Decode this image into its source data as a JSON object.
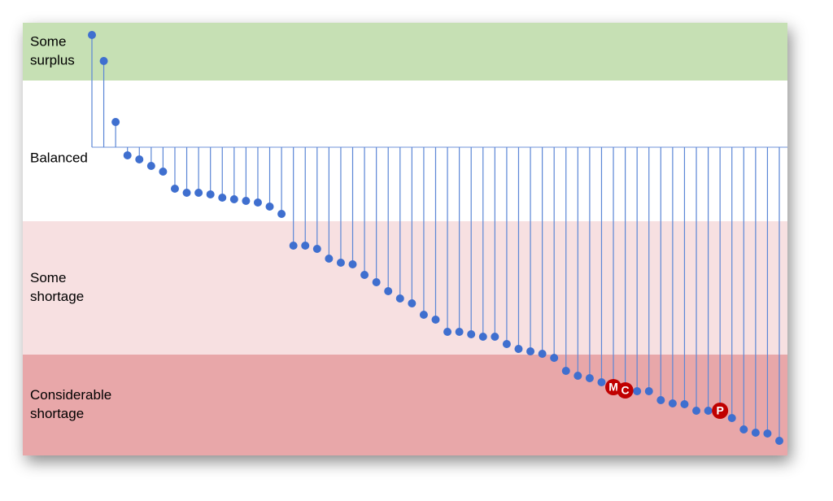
{
  "chart_data": {
    "type": "lollipop",
    "bands": [
      {
        "lines": [
          "Some",
          "surplus"
        ],
        "from": 82,
        "to": 153,
        "color": "#c6e0b4"
      },
      {
        "lines": [
          "Balanced"
        ],
        "from": -91,
        "to": 82,
        "color": "#ffffff"
      },
      {
        "lines": [
          "Some",
          "shortage"
        ],
        "from": -255,
        "to": -91,
        "color": "#f7e0e1"
      },
      {
        "lines": [
          "Considerable",
          "shortage"
        ],
        "from": -379,
        "to": -255,
        "color": "#e8a7a9"
      }
    ],
    "values": [
      138,
      106,
      31,
      -10,
      -15,
      -23,
      -30,
      -51,
      -56,
      -56,
      -58,
      -62,
      -64,
      -66,
      -68,
      -73,
      -82,
      -121,
      -121,
      -125,
      -137,
      -142,
      -144,
      -157,
      -166,
      -177,
      -186,
      -192,
      -206,
      -212,
      -227,
      -227,
      -230,
      -233,
      -233,
      -242,
      -248,
      -251,
      -254,
      -259,
      -275,
      -281,
      -284,
      -289,
      -295,
      -299,
      -300,
      -300,
      -311,
      -315,
      -316,
      -324,
      -324,
      -324,
      -333,
      -347,
      -351,
      -352,
      -361
    ],
    "highlights": [
      {
        "index": 44,
        "label": "M"
      },
      {
        "index": 45,
        "label": "C"
      },
      {
        "index": 53,
        "label": "P"
      }
    ],
    "color": "#3f6fcf",
    "highlight_color": "#c00000",
    "ylim": [
      -379,
      153
    ]
  }
}
